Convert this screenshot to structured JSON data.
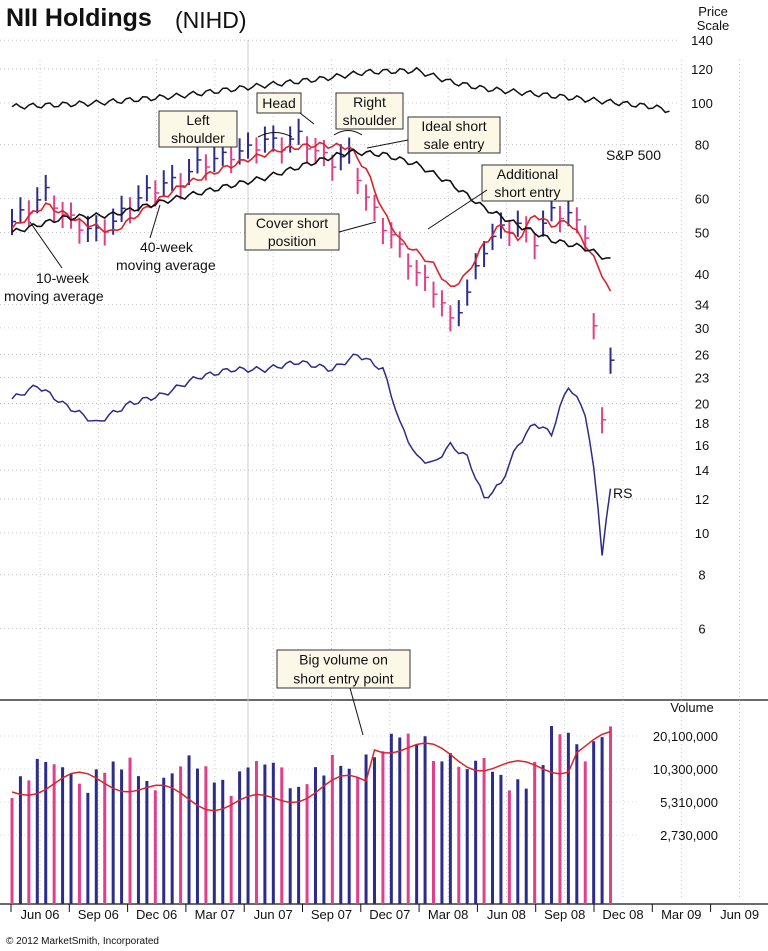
{
  "title": "NII Holdings",
  "symbol": "(NIHD)",
  "copyright": "© 2012 MarketSmith, Incorporated",
  "chart_data": {
    "type": "line",
    "price_scale_label": [
      "Price",
      "Scale"
    ],
    "price_axis": {
      "scale": "log",
      "ticks": [
        140,
        120,
        100,
        80,
        60,
        50,
        40,
        34,
        30,
        26,
        23,
        20,
        18,
        16,
        14,
        12,
        10,
        8,
        6
      ]
    },
    "volume_axis": {
      "label": "Volume",
      "ticks": [
        "20,100,000",
        "10,300,000",
        "5,310,000",
        "2,730,000"
      ]
    },
    "x_ticks": [
      "Jun 06",
      "Sep 06",
      "Dec 06",
      "Mar 07",
      "Jun 07",
      "Sep 07",
      "Dec 07",
      "Mar 08",
      "Jun 08",
      "Sep 08",
      "Dec 08",
      "Mar 09",
      "Jun 09"
    ],
    "series": [
      {
        "name": "S&P 500",
        "color": "#111111",
        "x": [
          0,
          10,
          20,
          30,
          37,
          42,
          48,
          52,
          56,
          60,
          64,
          68,
          72,
          76,
          78
        ],
        "y": [
          98,
          100,
          104,
          110,
          114,
          118,
          119,
          112,
          108,
          106,
          104,
          102,
          100,
          98,
          96
        ]
      },
      {
        "name": "RS",
        "color": "#2c2c8a",
        "x": [
          0,
          3,
          6,
          10,
          14,
          18,
          22,
          26,
          30,
          34,
          38,
          41,
          44,
          46,
          48,
          50,
          52,
          54,
          56,
          58,
          60,
          62,
          64,
          66,
          68,
          70,
          71
        ],
        "y": [
          20.5,
          22,
          20,
          18,
          20,
          21,
          23,
          24,
          24,
          25,
          24,
          26,
          24,
          18,
          15,
          14.5,
          16,
          15,
          12,
          13,
          16,
          18,
          17,
          22,
          19,
          9,
          12.5
        ]
      }
    ],
    "moving_averages": [
      {
        "name": "10-week moving average",
        "color": "#d8252d",
        "x": [
          0,
          4,
          8,
          12,
          16,
          20,
          24,
          28,
          32,
          36,
          40,
          42,
          44,
          46,
          48,
          50,
          52,
          54,
          56,
          58,
          60,
          62,
          64,
          66,
          68,
          70,
          71
        ],
        "y": [
          51,
          58,
          53,
          50,
          57,
          64,
          69,
          74,
          78,
          80,
          79,
          70,
          56,
          48,
          45,
          42,
          37,
          40,
          47,
          52,
          48,
          55,
          52,
          53,
          47,
          40,
          36
        ]
      },
      {
        "name": "40-week moving average",
        "color": "#111111",
        "x": [
          0,
          6,
          12,
          18,
          24,
          30,
          36,
          40,
          44,
          48,
          52,
          56,
          60,
          64,
          68,
          71
        ],
        "y": [
          50,
          54,
          55,
          59,
          63,
          67,
          73,
          77,
          76,
          72,
          65,
          57,
          52,
          48,
          46,
          43
        ]
      }
    ],
    "weekly_close": {
      "x": [
        0,
        2,
        4,
        6,
        8,
        10,
        12,
        14,
        16,
        18,
        20,
        22,
        24,
        26,
        28,
        30,
        32,
        34,
        36,
        38,
        40,
        42,
        44,
        46,
        48,
        50,
        52,
        54,
        56,
        58,
        60,
        62,
        64,
        66,
        68,
        69,
        70,
        71
      ],
      "y": [
        53,
        57,
        62,
        55,
        52,
        50,
        53,
        58,
        62,
        65,
        66,
        72,
        74,
        76,
        78,
        82,
        80,
        84,
        77,
        73,
        76,
        60,
        52,
        46,
        40,
        37,
        31,
        36,
        46,
        51,
        52,
        48,
        56,
        55,
        50,
        30,
        18,
        26
      ]
    },
    "annotations": [
      {
        "id": "left-shoulder",
        "lines": [
          "Left",
          "shoulder"
        ]
      },
      {
        "id": "head",
        "lines": [
          "Head"
        ]
      },
      {
        "id": "right-shoulder",
        "lines": [
          "Right",
          "shoulder"
        ]
      },
      {
        "id": "ideal-short",
        "lines": [
          "Ideal short",
          "sale entry"
        ]
      },
      {
        "id": "additional-short",
        "lines": [
          "Additional",
          "short entry"
        ]
      },
      {
        "id": "cover-short",
        "lines": [
          "Cover short",
          "position"
        ]
      },
      {
        "id": "big-volume",
        "lines": [
          "Big volume on",
          "short entry point"
        ]
      }
    ],
    "labels": {
      "ma10": [
        "10-week",
        "moving average"
      ],
      "ma40": [
        "40-week",
        "moving average"
      ],
      "sp500": "S&P 500",
      "rs": "RS"
    },
    "colors": {
      "up": "#2c2c8a",
      "down": "#e0408a",
      "ma10": "#d8252d",
      "ma40": "#111111",
      "rs": "#2c2c8a"
    }
  }
}
